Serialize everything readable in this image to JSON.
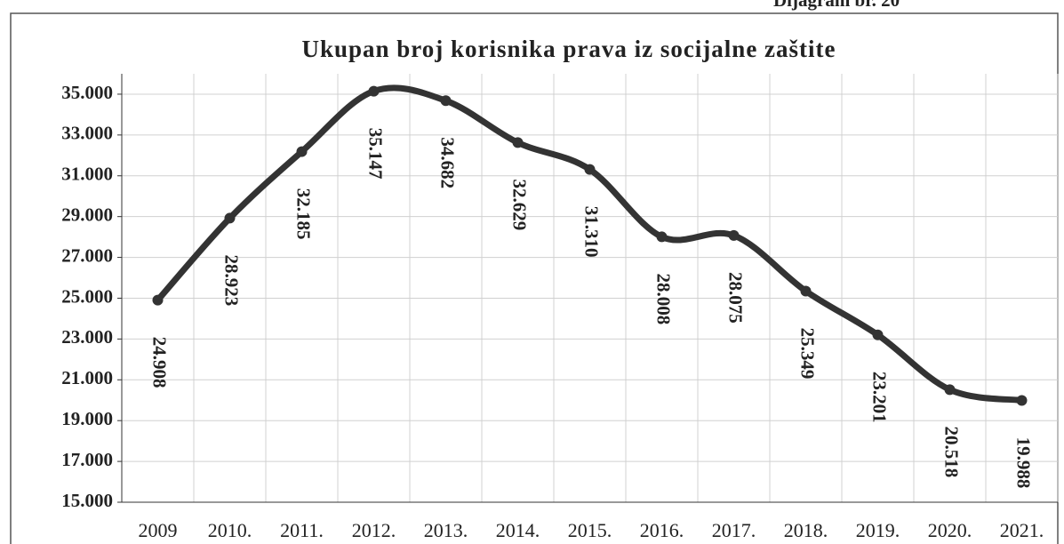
{
  "note_top": "Dijagram br. 20",
  "chart_data": {
    "type": "line",
    "title": "Ukupan broj korisnika prava iz socijalne zaštite",
    "categories": [
      "2009",
      "2010.",
      "2011.",
      "2012.",
      "2013.",
      "2014.",
      "2015.",
      "2016.",
      "2017.",
      "2018.",
      "2019.",
      "2020.",
      "2021."
    ],
    "values": [
      24908,
      28923,
      32185,
      35147,
      34682,
      32629,
      31310,
      28008,
      28075,
      25349,
      23201,
      20518,
      19988
    ],
    "value_labels": [
      "24.908",
      "28.923",
      "32.185",
      "35.147",
      "34.682",
      "32.629",
      "31.310",
      "28.008",
      "28.075",
      "25.349",
      "23.201",
      "20.518",
      "19.988"
    ],
    "color": "#333333",
    "ylim": [
      15000,
      36000
    ],
    "yticks": [
      {
        "value": 15000,
        "label": "15.000"
      },
      {
        "value": 17000,
        "label": "17.000"
      },
      {
        "value": 19000,
        "label": "19.000"
      },
      {
        "value": 21000,
        "label": "21.000"
      },
      {
        "value": 23000,
        "label": "23.000"
      },
      {
        "value": 25000,
        "label": "25.000"
      },
      {
        "value": 27000,
        "label": "27.000"
      },
      {
        "value": 29000,
        "label": "29.000"
      },
      {
        "value": 31000,
        "label": "31.000"
      },
      {
        "value": 33000,
        "label": "33.000"
      },
      {
        "value": 35000,
        "label": "35.000"
      }
    ],
    "grid": true
  }
}
